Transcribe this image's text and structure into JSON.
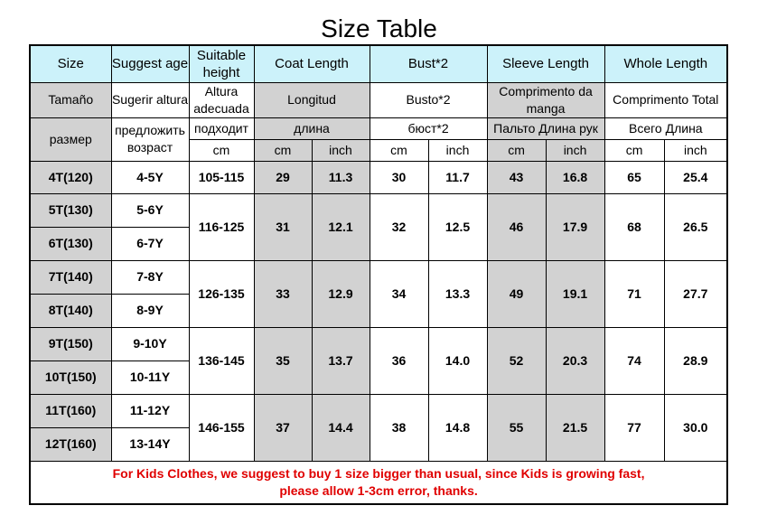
{
  "title": "Size Table",
  "header_en": [
    "Size",
    "Suggest age",
    "Suitable height",
    "Coat Length",
    "Bust*2",
    "Sleeve Length",
    "Whole Length"
  ],
  "header_es": [
    "Tamaño",
    "Sugerir altura",
    "Altura adecuada",
    "Longitud",
    "Busto*2",
    "Comprimento da manga",
    "Comprimento Total"
  ],
  "header_ru": [
    "размер",
    "предложить возраст",
    "подходит",
    "длина",
    "бюст*2",
    "Пальто Длина рук",
    "Всего Длина"
  ],
  "units": {
    "cm": "cm",
    "inch": "inch"
  },
  "rows": [
    {
      "size": "4T(120)",
      "age": "4-5Y"
    },
    {
      "size": "5T(130)",
      "age": "5-6Y"
    },
    {
      "size": "6T(130)",
      "age": "6-7Y"
    },
    {
      "size": "7T(140)",
      "age": "7-8Y"
    },
    {
      "size": "8T(140)",
      "age": "8-9Y"
    },
    {
      "size": "9T(150)",
      "age": "9-10Y"
    },
    {
      "size": "10T(150)",
      "age": "10-11Y"
    },
    {
      "size": "11T(160)",
      "age": "11-12Y"
    },
    {
      "size": "12T(160)",
      "age": "13-14Y"
    }
  ],
  "groups": [
    {
      "height": "105-115",
      "coat_cm": "29",
      "coat_in": "11.3",
      "bust_cm": "30",
      "bust_in": "11.7",
      "sleeve_cm": "43",
      "sleeve_in": "16.8",
      "whole_cm": "65",
      "whole_in": "25.4"
    },
    {
      "height": "116-125",
      "coat_cm": "31",
      "coat_in": "12.1",
      "bust_cm": "32",
      "bust_in": "12.5",
      "sleeve_cm": "46",
      "sleeve_in": "17.9",
      "whole_cm": "68",
      "whole_in": "26.5"
    },
    {
      "height": "126-135",
      "coat_cm": "33",
      "coat_in": "12.9",
      "bust_cm": "34",
      "bust_in": "13.3",
      "sleeve_cm": "49",
      "sleeve_in": "19.1",
      "whole_cm": "71",
      "whole_in": "27.7"
    },
    {
      "height": "136-145",
      "coat_cm": "35",
      "coat_in": "13.7",
      "bust_cm": "36",
      "bust_in": "14.0",
      "sleeve_cm": "52",
      "sleeve_in": "20.3",
      "whole_cm": "74",
      "whole_in": "28.9"
    },
    {
      "height": "146-155",
      "coat_cm": "37",
      "coat_in": "14.4",
      "bust_cm": "38",
      "bust_in": "14.8",
      "sleeve_cm": "55",
      "sleeve_in": "21.5",
      "whole_cm": "77",
      "whole_in": "30.0"
    }
  ],
  "note_line1": "For Kids Clothes, we suggest to buy 1 size bigger than usual, since Kids is growing fast,",
  "note_line2": "please allow  1-3cm error, thanks.",
  "colors": {
    "header_bg": "#ccf2fa",
    "gray_bg": "#d2d2d2",
    "note_text": "#e00000"
  }
}
